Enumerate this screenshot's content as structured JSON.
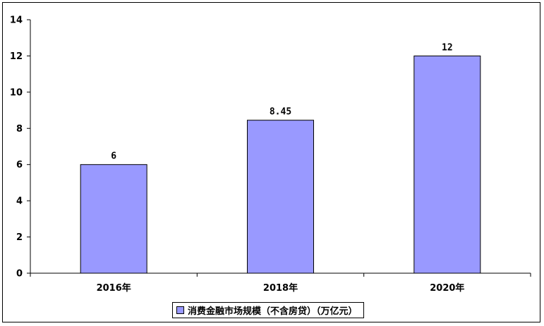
{
  "chart_data": {
    "type": "bar",
    "categories": [
      "2016年",
      "2018年",
      "2020年"
    ],
    "series": [
      {
        "name": "消费金融市场规模（不含房贷）（万亿元）",
        "values": [
          6,
          8.45,
          12
        ],
        "labels": [
          "6",
          "8.45",
          "12"
        ],
        "color": "#9999ff"
      }
    ],
    "ylim": [
      0,
      14
    ],
    "yticks": [
      0,
      2,
      4,
      6,
      8,
      10,
      12,
      14
    ],
    "grid": false,
    "legend_position": "bottom"
  }
}
